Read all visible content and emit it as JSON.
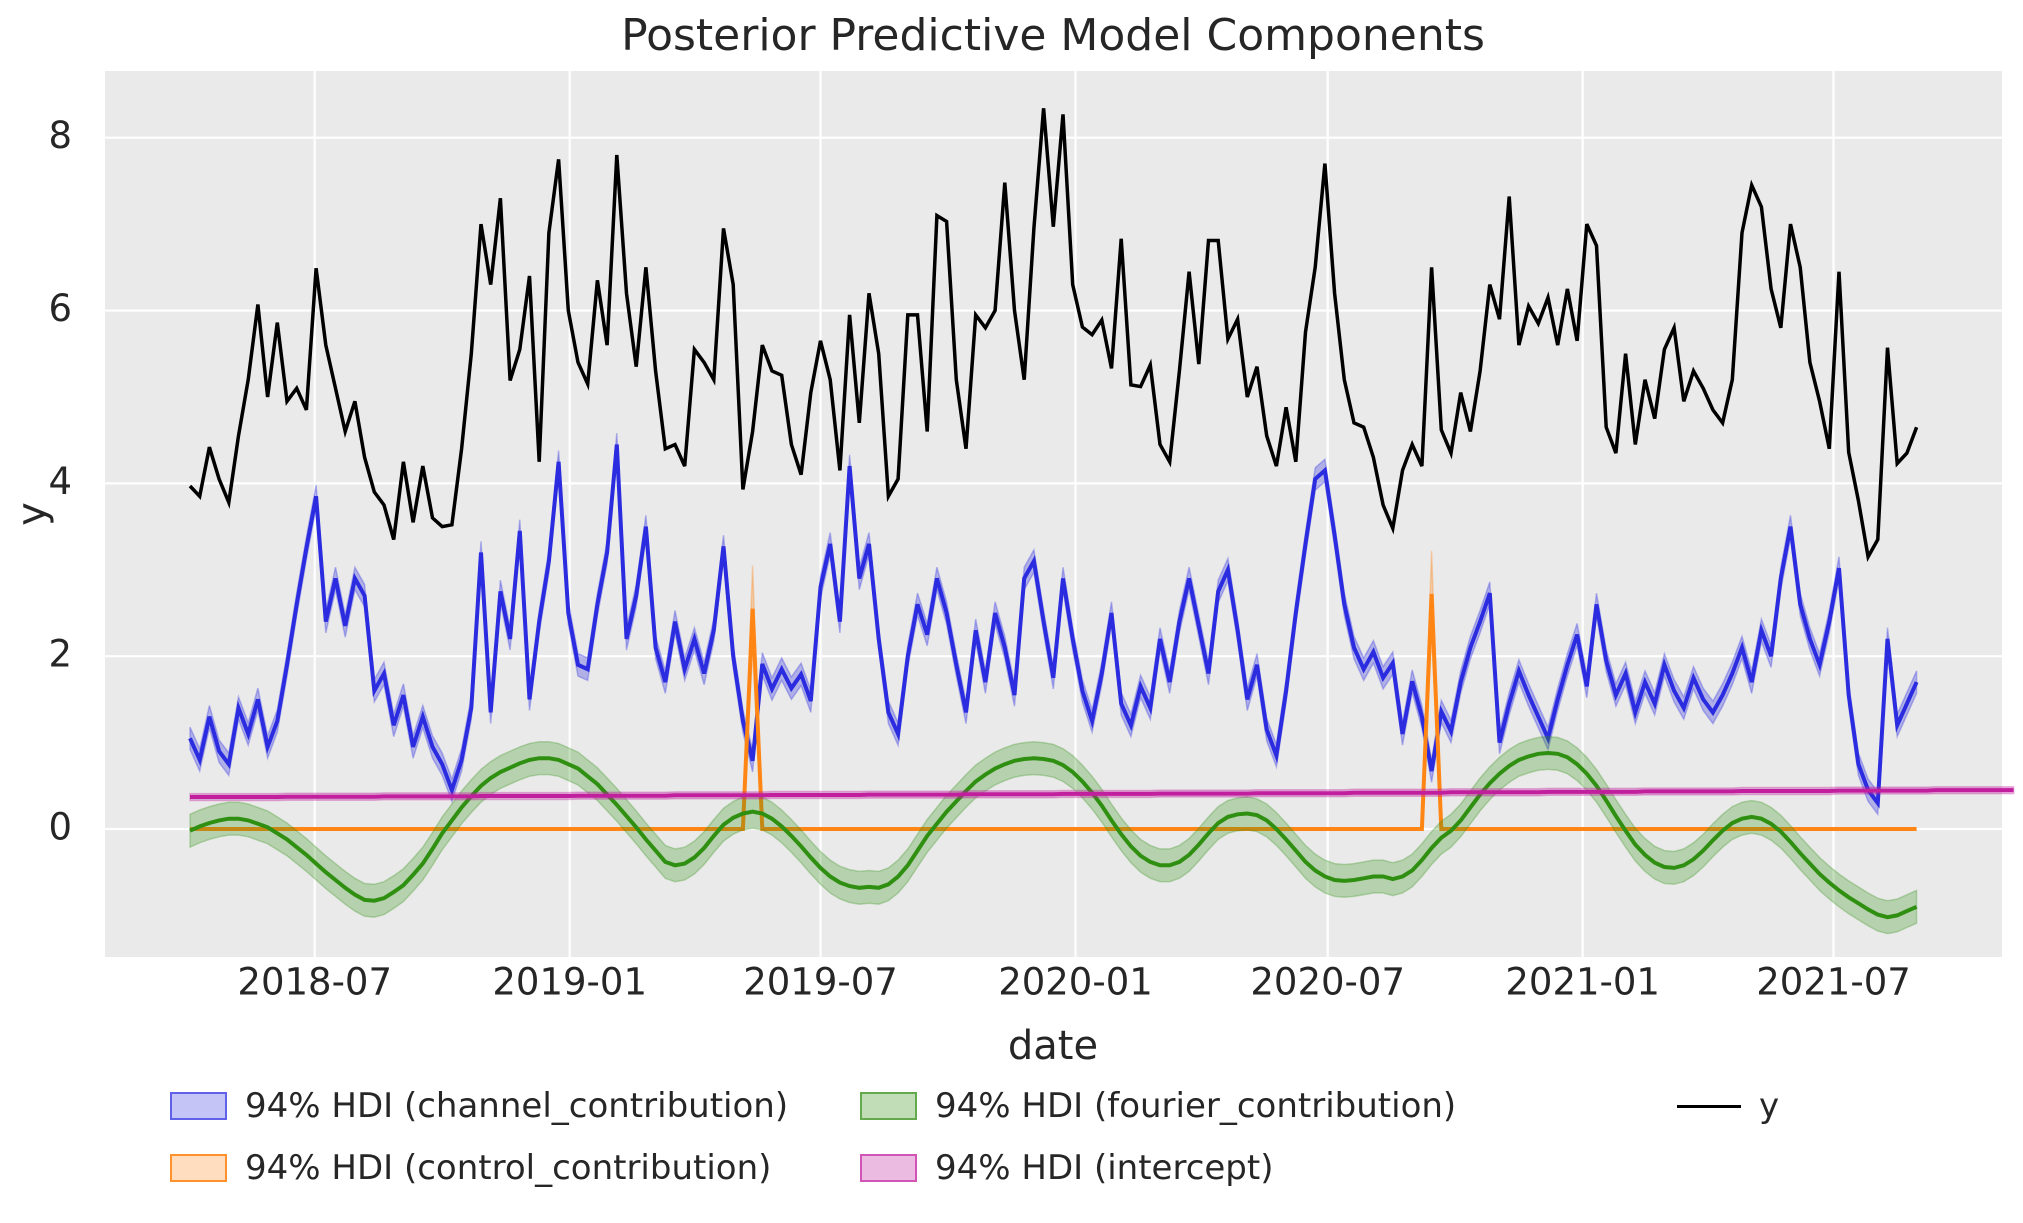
{
  "title": "Posterior Predictive Model Components",
  "axes": {
    "xlabel": "date",
    "ylabel": "y",
    "background": "#eaeaea",
    "grid_color": "#ffffff",
    "text_color": "#262626",
    "x_tick_labels": [
      "2018-07",
      "2019-01",
      "2019-07",
      "2020-01",
      "2020-07",
      "2021-01",
      "2021-07"
    ],
    "x_tick_weeks": [
      12.857,
      39.143,
      65.0,
      91.286,
      117.286,
      143.571,
      169.429
    ],
    "y_tick_labels": [
      "0",
      "2",
      "4",
      "6",
      "8"
    ],
    "y_tick_values": [
      0,
      2,
      4,
      6,
      8
    ],
    "xlim_weeks": [
      -8.763,
      186.8
    ],
    "ylim": [
      -1.481,
      8.772
    ]
  },
  "legend": {
    "entries": [
      {
        "label": "94% HDI (channel_contribution)",
        "kind": "patch",
        "fill": "rgba(43,43,224,0.28)",
        "edge": "rgba(43,43,224,0.65)"
      },
      {
        "label": "94% HDI (control_contribution)",
        "kind": "patch",
        "fill": "rgba(255,133,20,0.28)",
        "edge": "rgba(255,133,20,0.85)"
      },
      {
        "label": "94% HDI (fourier_contribution)",
        "kind": "patch",
        "fill": "rgba(47,143,17,0.30)",
        "edge": "rgba(47,143,17,0.65)"
      },
      {
        "label": "94% HDI (intercept)",
        "kind": "patch",
        "fill": "rgba(193,31,158,0.30)",
        "edge": "rgba(193,31,158,0.65)"
      },
      {
        "label": "y",
        "kind": "line",
        "color": "#000000"
      }
    ]
  },
  "chart_data": {
    "type": "line",
    "x_start_date": "2018-04-02",
    "x_freq_days": 7,
    "n_points": 179,
    "x_unit": "weeks since 2018-04-02",
    "title": "Posterior Predictive Model Components",
    "xlabel": "date",
    "ylabel": "y",
    "grid": true,
    "legend_position": "below",
    "series": [
      {
        "name": "channel_contribution",
        "type": "line+hdi",
        "color": "#2b2be0",
        "band_fill": "rgba(43,43,224,0.30)",
        "hdi_half": 0.13,
        "spike_extra_half": 0,
        "values": [
          1.05,
          0.8,
          1.3,
          0.9,
          0.75,
          1.4,
          1.1,
          1.5,
          0.95,
          1.25,
          1.9,
          2.6,
          3.25,
          3.85,
          2.4,
          2.9,
          2.35,
          2.9,
          2.7,
          1.6,
          1.8,
          1.2,
          1.55,
          0.95,
          1.3,
          0.95,
          0.75,
          0.45,
          0.8,
          1.4,
          3.2,
          1.35,
          2.75,
          2.2,
          3.45,
          1.5,
          2.4,
          3.1,
          4.25,
          2.5,
          1.9,
          1.85,
          2.6,
          3.2,
          4.45,
          2.2,
          2.7,
          3.5,
          2.1,
          1.7,
          2.4,
          1.85,
          2.2,
          1.8,
          2.3,
          3.27,
          2.0,
          1.25,
          0.79,
          1.91,
          1.62,
          1.85,
          1.63,
          1.79,
          1.48,
          2.8,
          3.3,
          2.4,
          4.2,
          2.9,
          3.3,
          2.2,
          1.35,
          1.1,
          2.0,
          2.6,
          2.25,
          2.9,
          2.5,
          1.9,
          1.35,
          2.3,
          1.7,
          2.5,
          2.1,
          1.55,
          2.9,
          3.1,
          2.4,
          1.75,
          2.9,
          2.2,
          1.6,
          1.25,
          1.8,
          2.5,
          1.45,
          1.2,
          1.65,
          1.4,
          2.2,
          1.7,
          2.4,
          2.9,
          2.35,
          1.8,
          2.75,
          3.0,
          2.3,
          1.5,
          1.9,
          1.15,
          0.85,
          1.6,
          2.5,
          3.3,
          4.05,
          4.15,
          3.4,
          2.6,
          2.1,
          1.85,
          2.05,
          1.75,
          1.92,
          1.1,
          1.71,
          1.3,
          0.67,
          1.36,
          1.13,
          1.7,
          2.1,
          2.4,
          2.73,
          1.0,
          1.45,
          1.83,
          1.55,
          1.3,
          1.05,
          1.5,
          1.9,
          2.25,
          1.65,
          2.6,
          1.95,
          1.55,
          1.8,
          1.35,
          1.7,
          1.45,
          1.9,
          1.6,
          1.4,
          1.75,
          1.5,
          1.35,
          1.55,
          1.8,
          2.1,
          1.7,
          2.3,
          2.0,
          2.9,
          3.5,
          2.6,
          2.2,
          1.9,
          2.4,
          3.02,
          1.55,
          0.75,
          0.45,
          0.3,
          2.2,
          1.2,
          1.45,
          1.7
        ]
      },
      {
        "name": "control_contribution",
        "type": "line+hdi",
        "color": "#ff8514",
        "band_fill": "rgba(255,133,20,0.30)",
        "hdi_half": 0.0,
        "spike_extra_half": 0.5,
        "values": [
          0,
          0,
          0,
          0,
          0,
          0,
          0,
          0,
          0,
          0,
          0,
          0,
          0,
          0,
          0,
          0,
          0,
          0,
          0,
          0,
          0,
          0,
          0,
          0,
          0,
          0,
          0,
          0,
          0,
          0,
          0,
          0,
          0,
          0,
          0,
          0,
          0,
          0,
          0,
          0,
          0,
          0,
          0,
          0,
          0,
          0,
          0,
          0,
          0,
          0,
          0,
          0,
          0,
          0,
          0,
          0,
          0,
          0,
          2.55,
          0,
          0,
          0,
          0,
          0,
          0,
          0,
          0,
          0,
          0,
          0,
          0,
          0,
          0,
          0,
          0,
          0,
          0,
          0,
          0,
          0,
          0,
          0,
          0,
          0,
          0,
          0,
          0,
          0,
          0,
          0,
          0,
          0,
          0,
          0,
          0,
          0,
          0,
          0,
          0,
          0,
          0,
          0,
          0,
          0,
          0,
          0,
          0,
          0,
          0,
          0,
          0,
          0,
          0,
          0,
          0,
          0,
          0,
          0,
          0,
          0,
          0,
          0,
          0,
          0,
          0,
          0,
          0,
          0,
          2.72,
          0,
          0,
          0,
          0,
          0,
          0,
          0,
          0,
          0,
          0,
          0,
          0,
          0,
          0,
          0,
          0,
          0,
          0,
          0,
          0,
          0,
          0,
          0,
          0,
          0,
          0,
          0,
          0,
          0,
          0,
          0,
          0,
          0,
          0,
          0,
          0,
          0,
          0,
          0,
          0,
          0,
          0,
          0,
          0,
          0,
          0,
          0,
          0,
          0,
          0
        ]
      },
      {
        "name": "fourier_contribution",
        "type": "line+hdi",
        "color": "#2f8f11",
        "band_fill": "rgba(47,143,17,0.28)",
        "hdi_half": 0.19,
        "spike_extra_half": 0,
        "values": [
          -0.02,
          0.03,
          0.07,
          0.1,
          0.12,
          0.12,
          0.1,
          0.06,
          0.02,
          -0.05,
          -0.12,
          -0.21,
          -0.3,
          -0.4,
          -0.5,
          -0.59,
          -0.68,
          -0.76,
          -0.82,
          -0.83,
          -0.8,
          -0.73,
          -0.65,
          -0.53,
          -0.4,
          -0.23,
          -0.05,
          0.1,
          0.25,
          0.38,
          0.5,
          0.59,
          0.66,
          0.71,
          0.76,
          0.8,
          0.82,
          0.82,
          0.8,
          0.75,
          0.7,
          0.61,
          0.52,
          0.4,
          0.28,
          0.15,
          0.02,
          -0.12,
          -0.25,
          -0.38,
          -0.42,
          -0.4,
          -0.33,
          -0.22,
          -0.08,
          0.05,
          0.13,
          0.18,
          0.2,
          0.18,
          0.12,
          0.03,
          -0.08,
          -0.2,
          -0.33,
          -0.45,
          -0.55,
          -0.62,
          -0.66,
          -0.68,
          -0.67,
          -0.68,
          -0.64,
          -0.55,
          -0.42,
          -0.25,
          -0.08,
          0.06,
          0.2,
          0.32,
          0.44,
          0.55,
          0.63,
          0.7,
          0.75,
          0.79,
          0.81,
          0.82,
          0.81,
          0.79,
          0.74,
          0.66,
          0.55,
          0.42,
          0.27,
          0.1,
          -0.06,
          -0.2,
          -0.31,
          -0.38,
          -0.42,
          -0.42,
          -0.38,
          -0.3,
          -0.18,
          -0.05,
          0.07,
          0.14,
          0.17,
          0.18,
          0.16,
          0.1,
          0.0,
          -0.12,
          -0.25,
          -0.38,
          -0.48,
          -0.55,
          -0.59,
          -0.6,
          -0.59,
          -0.57,
          -0.55,
          -0.55,
          -0.58,
          -0.55,
          -0.48,
          -0.36,
          -0.22,
          -0.1,
          -0.02,
          0.1,
          0.25,
          0.4,
          0.53,
          0.64,
          0.73,
          0.8,
          0.84,
          0.87,
          0.88,
          0.87,
          0.83,
          0.75,
          0.64,
          0.5,
          0.33,
          0.15,
          -0.02,
          -0.18,
          -0.3,
          -0.39,
          -0.44,
          -0.45,
          -0.42,
          -0.35,
          -0.25,
          -0.13,
          -0.02,
          0.07,
          0.12,
          0.14,
          0.12,
          0.06,
          -0.03,
          -0.15,
          -0.28,
          -0.4,
          -0.52,
          -0.62,
          -0.71,
          -0.79,
          -0.86,
          -0.93,
          -0.99,
          -1.02,
          -1.0,
          -0.95,
          -0.9
        ]
      },
      {
        "name": "intercept",
        "type": "line+hdi",
        "color": "#c11f9e",
        "band_fill": "rgba(193,31,158,0.30)",
        "hdi_half": 0.04,
        "spike_extra_half": 0,
        "values": [
          0.37,
          0.37,
          0.37,
          0.37,
          0.37,
          0.37,
          0.37,
          0.37,
          0.37,
          0.37,
          0.374,
          0.374,
          0.374,
          0.374,
          0.374,
          0.374,
          0.374,
          0.374,
          0.374,
          0.374,
          0.378,
          0.378,
          0.378,
          0.378,
          0.378,
          0.378,
          0.378,
          0.378,
          0.378,
          0.378,
          0.382,
          0.382,
          0.382,
          0.382,
          0.382,
          0.382,
          0.382,
          0.382,
          0.382,
          0.382,
          0.386,
          0.386,
          0.386,
          0.386,
          0.386,
          0.386,
          0.386,
          0.386,
          0.386,
          0.386,
          0.39,
          0.39,
          0.39,
          0.39,
          0.39,
          0.39,
          0.39,
          0.39,
          0.39,
          0.39,
          0.394,
          0.394,
          0.394,
          0.394,
          0.394,
          0.394,
          0.394,
          0.394,
          0.394,
          0.394,
          0.398,
          0.398,
          0.398,
          0.398,
          0.398,
          0.398,
          0.398,
          0.398,
          0.398,
          0.398,
          0.402,
          0.402,
          0.402,
          0.402,
          0.402,
          0.402,
          0.402,
          0.402,
          0.402,
          0.402,
          0.406,
          0.406,
          0.406,
          0.406,
          0.406,
          0.406,
          0.406,
          0.406,
          0.406,
          0.406,
          0.41,
          0.41,
          0.41,
          0.41,
          0.41,
          0.41,
          0.41,
          0.41,
          0.41,
          0.41,
          0.415,
          0.415,
          0.415,
          0.415,
          0.415,
          0.415,
          0.415,
          0.415,
          0.415,
          0.415,
          0.42,
          0.42,
          0.42,
          0.42,
          0.42,
          0.42,
          0.42,
          0.42,
          0.42,
          0.42,
          0.425,
          0.425,
          0.425,
          0.425,
          0.425,
          0.425,
          0.425,
          0.425,
          0.425,
          0.425,
          0.43,
          0.43,
          0.43,
          0.43,
          0.43,
          0.43,
          0.43,
          0.43,
          0.43,
          0.43,
          0.435,
          0.435,
          0.435,
          0.435,
          0.435,
          0.435,
          0.435,
          0.435,
          0.435,
          0.435,
          0.44,
          0.44,
          0.44,
          0.44,
          0.44,
          0.44,
          0.44,
          0.44,
          0.44,
          0.44,
          0.445,
          0.445,
          0.445,
          0.445,
          0.445,
          0.445,
          0.445,
          0.445,
          0.445,
          0.445,
          0.45,
          0.45,
          0.45,
          0.45,
          0.45,
          0.45,
          0.45,
          0.45,
          0.45
        ]
      },
      {
        "name": "y",
        "type": "line",
        "color": "#000000",
        "values": [
          3.97,
          3.85,
          4.42,
          4.05,
          3.78,
          4.55,
          5.2,
          6.07,
          5.0,
          5.86,
          4.95,
          5.1,
          4.85,
          6.49,
          5.6,
          5.1,
          4.6,
          4.95,
          4.3,
          3.9,
          3.75,
          3.35,
          4.25,
          3.55,
          4.2,
          3.6,
          3.5,
          3.52,
          4.4,
          5.5,
          7.0,
          6.3,
          7.3,
          5.19,
          5.55,
          6.4,
          4.25,
          6.9,
          7.75,
          6.0,
          5.4,
          5.15,
          6.35,
          5.6,
          7.8,
          6.2,
          5.35,
          6.5,
          5.3,
          4.4,
          4.45,
          4.2,
          5.55,
          5.4,
          5.2,
          6.95,
          6.3,
          3.93,
          4.6,
          5.6,
          5.3,
          5.25,
          4.45,
          4.1,
          5.05,
          5.65,
          5.2,
          4.15,
          5.95,
          4.7,
          6.2,
          5.5,
          3.85,
          4.05,
          5.95,
          5.95,
          4.6,
          7.1,
          7.03,
          5.2,
          4.4,
          5.95,
          5.8,
          6.0,
          7.48,
          6.0,
          5.2,
          6.95,
          8.34,
          6.97,
          8.27,
          6.3,
          5.81,
          5.72,
          5.89,
          5.33,
          6.83,
          5.14,
          5.12,
          5.37,
          4.45,
          4.25,
          5.3,
          6.45,
          5.38,
          6.81,
          6.81,
          5.67,
          5.9,
          5.0,
          5.35,
          4.55,
          4.2,
          4.88,
          4.25,
          5.75,
          6.5,
          7.7,
          6.2,
          5.2,
          4.7,
          4.65,
          4.3,
          3.75,
          3.48,
          4.15,
          4.45,
          4.2,
          6.5,
          4.62,
          4.35,
          5.05,
          4.6,
          5.3,
          6.3,
          5.9,
          7.32,
          5.6,
          6.05,
          5.85,
          6.15,
          5.6,
          6.25,
          5.65,
          7.0,
          6.75,
          4.65,
          4.35,
          5.5,
          4.45,
          5.2,
          4.75,
          5.55,
          5.8,
          4.95,
          5.3,
          5.1,
          4.85,
          4.7,
          5.2,
          6.9,
          7.45,
          7.2,
          6.25,
          5.8,
          7.0,
          6.5,
          5.4,
          4.95,
          4.4,
          6.45,
          4.36,
          3.8,
          3.15,
          3.35,
          5.57,
          4.23,
          4.35,
          4.65
        ]
      }
    ]
  }
}
